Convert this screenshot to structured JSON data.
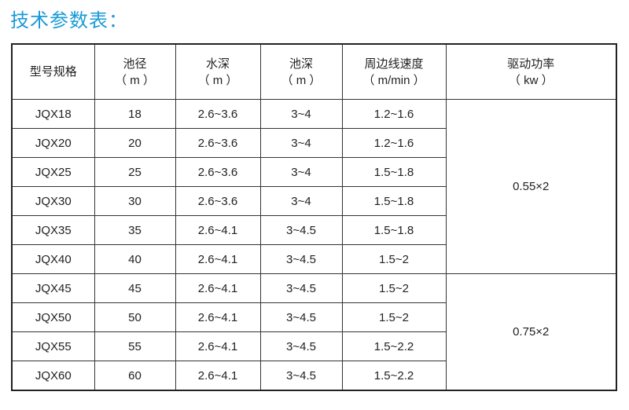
{
  "title": "技术参数表：",
  "headers": [
    {
      "name": "型号规格",
      "unit": ""
    },
    {
      "name": "池径",
      "unit": "（ m ）"
    },
    {
      "name": "水深",
      "unit": "（ m ）"
    },
    {
      "name": "池深",
      "unit": "（ m ）"
    },
    {
      "name": "周边线速度",
      "unit": "（ m/min ）"
    },
    {
      "name": "驱动功率",
      "unit": "（ kw ）"
    }
  ],
  "rows": [
    [
      "JQX18",
      "18",
      "2.6~3.6",
      "3~4",
      "1.2~1.6"
    ],
    [
      "JQX20",
      "20",
      "2.6~3.6",
      "3~4",
      "1.2~1.6"
    ],
    [
      "JQX25",
      "25",
      "2.6~3.6",
      "3~4",
      "1.5~1.8"
    ],
    [
      "JQX30",
      "30",
      "2.6~3.6",
      "3~4",
      "1.5~1.8"
    ],
    [
      "JQX35",
      "35",
      "2.6~4.1",
      "3~4.5",
      "1.5~1.8"
    ],
    [
      "JQX40",
      "40",
      "2.6~4.1",
      "3~4.5",
      "1.5~2"
    ],
    [
      "JQX45",
      "45",
      "2.6~4.1",
      "3~4.5",
      "1.5~2"
    ],
    [
      "JQX50",
      "50",
      "2.6~4.1",
      "3~4.5",
      "1.5~2"
    ],
    [
      "JQX55",
      "55",
      "2.6~4.1",
      "3~4.5",
      "1.5~2.2"
    ],
    [
      "JQX60",
      "60",
      "2.6~4.1",
      "3~4.5",
      "1.5~2.2"
    ]
  ],
  "power_groups": [
    "0.55×2",
    "0.75×2"
  ]
}
